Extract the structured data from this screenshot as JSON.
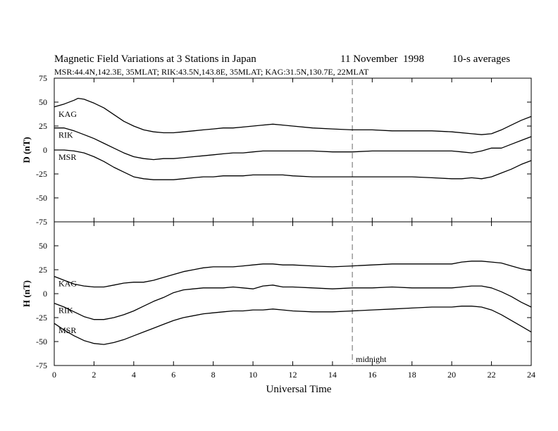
{
  "header": {
    "title": "Magnetic Field Variations at 3 Stations in Japan",
    "date_day": "11 November",
    "date_year": "1998",
    "averaging": "10-s averages",
    "stations_line": "MSR:44.4N,142.3E, 35MLAT;   RIK:43.5N,143.8E, 35MLAT;   KAG:31.5N,130.7E, 22MLAT"
  },
  "colors": {
    "trace": "#000000",
    "marker": "#999999",
    "axis": "#000000"
  },
  "chart_data": [
    {
      "id": "D",
      "type": "line",
      "ylabel": "D (nT)",
      "ylim": [
        -75,
        75
      ],
      "yticks": [
        75,
        50,
        25,
        0,
        -25,
        -50,
        -75
      ],
      "xlim": [
        0,
        24
      ],
      "series": [
        {
          "name": "KAG",
          "x": [
            0,
            0.5,
            1,
            1.2,
            1.5,
            2,
            2.5,
            3,
            3.5,
            4,
            4.5,
            5,
            5.5,
            6,
            6.5,
            7,
            7.5,
            8,
            8.5,
            9,
            9.5,
            10,
            10.5,
            11,
            11.5,
            12,
            13,
            14,
            15,
            16,
            17,
            18,
            19,
            20,
            21,
            21.5,
            22,
            22.5,
            23,
            23.5,
            24
          ],
          "y": [
            45,
            48,
            52,
            54,
            53,
            49,
            44,
            37,
            30,
            25,
            21,
            19,
            18,
            18,
            19,
            20,
            21,
            22,
            23,
            23,
            24,
            25,
            26,
            27,
            26,
            25,
            23,
            22,
            21,
            21,
            20,
            20,
            20,
            19,
            17,
            16,
            17,
            21,
            26,
            31,
            35
          ]
        },
        {
          "name": "RIK",
          "x": [
            0,
            0.5,
            1,
            1.5,
            2,
            2.5,
            3,
            3.5,
            4,
            4.5,
            5,
            5.5,
            6,
            6.5,
            7,
            7.5,
            8,
            8.5,
            9,
            9.5,
            10,
            10.5,
            11,
            12,
            13,
            14,
            15,
            16,
            17,
            18,
            19,
            20,
            20.5,
            21,
            21.5,
            22,
            22.5,
            23,
            23.5,
            24
          ],
          "y": [
            23,
            23,
            20,
            16,
            12,
            7,
            2,
            -3,
            -7,
            -9,
            -10,
            -9,
            -9,
            -8,
            -7,
            -6,
            -5,
            -4,
            -3,
            -3,
            -2,
            -1,
            -1,
            -1,
            -1,
            -2,
            -2,
            -1,
            -1,
            -1,
            -1,
            -1,
            -2,
            -3,
            -1,
            2,
            2,
            6,
            10,
            14
          ]
        },
        {
          "name": "MSR",
          "x": [
            0,
            0.5,
            1,
            1.5,
            2,
            2.5,
            3,
            3.5,
            4,
            4.5,
            5,
            5.5,
            6,
            6.5,
            7,
            7.5,
            8,
            8.5,
            9,
            9.5,
            10,
            10.5,
            11,
            11.5,
            12,
            13,
            14,
            15,
            16,
            17,
            18,
            19,
            20,
            20.5,
            21,
            21.5,
            22,
            22.5,
            23,
            23.5,
            24
          ],
          "y": [
            0,
            0,
            -1,
            -3,
            -7,
            -12,
            -18,
            -23,
            -28,
            -30,
            -31,
            -31,
            -31,
            -30,
            -29,
            -28,
            -28,
            -27,
            -27,
            -27,
            -26,
            -26,
            -26,
            -26,
            -27,
            -28,
            -28,
            -28,
            -28,
            -28,
            -28,
            -29,
            -30,
            -30,
            -29,
            -30,
            -28,
            -24,
            -20,
            -15,
            -11
          ]
        }
      ]
    },
    {
      "id": "H",
      "type": "line",
      "ylabel": "H (nT)",
      "xlabel": "Universal Time",
      "ylim": [
        -75,
        75
      ],
      "yticks": [
        75,
        50,
        25,
        0,
        -25,
        -50,
        -75
      ],
      "xlim": [
        0,
        24
      ],
      "xticks": [
        0,
        2,
        4,
        6,
        8,
        10,
        12,
        14,
        16,
        18,
        20,
        22,
        24
      ],
      "series": [
        {
          "name": "KAG",
          "x": [
            0,
            0.5,
            1,
            1.5,
            2,
            2.5,
            3,
            3.5,
            4,
            4.5,
            5,
            5.5,
            6,
            6.5,
            7,
            7.5,
            8,
            8.5,
            9,
            9.5,
            10,
            10.5,
            11,
            11.5,
            12,
            13,
            14,
            15,
            16,
            17,
            18,
            19,
            20,
            20.5,
            21,
            21.5,
            22,
            22.5,
            23,
            23.5,
            24
          ],
          "y": [
            18,
            14,
            10,
            8,
            7,
            7,
            9,
            11,
            12,
            12,
            14,
            17,
            20,
            23,
            25,
            27,
            28,
            28,
            28,
            29,
            30,
            31,
            31,
            30,
            30,
            29,
            28,
            29,
            30,
            31,
            31,
            31,
            31,
            33,
            34,
            34,
            33,
            32,
            29,
            26,
            24
          ]
        },
        {
          "name": "RIK",
          "x": [
            0,
            0.5,
            1,
            1.5,
            2,
            2.5,
            3,
            3.5,
            4,
            4.5,
            5,
            5.5,
            6,
            6.5,
            7,
            7.5,
            8,
            8.5,
            9,
            9.5,
            10,
            10.5,
            11,
            11.5,
            12,
            13,
            14,
            15,
            16,
            17,
            18,
            19,
            20,
            20.5,
            21,
            21.5,
            22,
            22.5,
            23,
            23.5,
            24
          ],
          "y": [
            -10,
            -14,
            -19,
            -24,
            -27,
            -27,
            -25,
            -22,
            -18,
            -13,
            -8,
            -4,
            1,
            4,
            5,
            6,
            6,
            6,
            7,
            6,
            5,
            8,
            9,
            7,
            7,
            6,
            5,
            6,
            6,
            7,
            6,
            6,
            6,
            7,
            8,
            8,
            6,
            2,
            -3,
            -9,
            -14
          ]
        },
        {
          "name": "MSR",
          "x": [
            0,
            0.5,
            1,
            1.5,
            2,
            2.5,
            3,
            3.5,
            4,
            4.5,
            5,
            5.5,
            6,
            6.5,
            7,
            7.5,
            8,
            8.5,
            9,
            9.5,
            10,
            10.5,
            11,
            11.5,
            12,
            13,
            14,
            15,
            16,
            17,
            18,
            19,
            20,
            20.5,
            21,
            21.5,
            22,
            22.5,
            23,
            23.5,
            24
          ],
          "y": [
            -31,
            -38,
            -44,
            -49,
            -52,
            -53,
            -51,
            -48,
            -44,
            -40,
            -36,
            -32,
            -28,
            -25,
            -23,
            -21,
            -20,
            -19,
            -18,
            -18,
            -17,
            -17,
            -16,
            -17,
            -18,
            -19,
            -19,
            -18,
            -17,
            -16,
            -15,
            -14,
            -14,
            -13,
            -13,
            -14,
            -17,
            -22,
            -28,
            -34,
            -40
          ]
        }
      ]
    }
  ],
  "marker": {
    "x": 15,
    "label": "midnight"
  }
}
